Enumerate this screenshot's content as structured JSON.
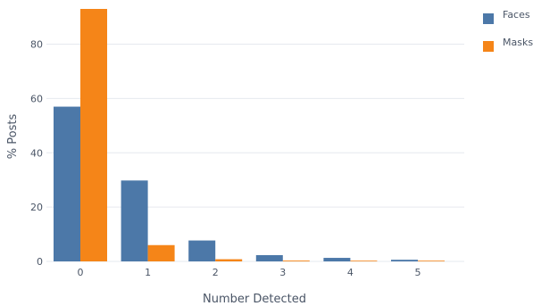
{
  "chart_data": {
    "type": "bar",
    "categories": [
      "0",
      "1",
      "2",
      "3",
      "4",
      "5"
    ],
    "series": [
      {
        "name": "Faces",
        "color": "#4c78a8",
        "values": [
          57,
          29.8,
          7.7,
          2.3,
          1.3,
          0.6
        ]
      },
      {
        "name": "Masks",
        "color": "#f58518",
        "values": [
          93,
          6,
          0.8,
          0.3,
          0.2,
          0.1
        ]
      }
    ],
    "title": "",
    "xlabel": "Number Detected",
    "ylabel": "% Posts",
    "ylim": [
      0,
      93
    ],
    "yticks": [
      0,
      20,
      40,
      60,
      80
    ],
    "grid": true,
    "legend_position": "top-right"
  }
}
